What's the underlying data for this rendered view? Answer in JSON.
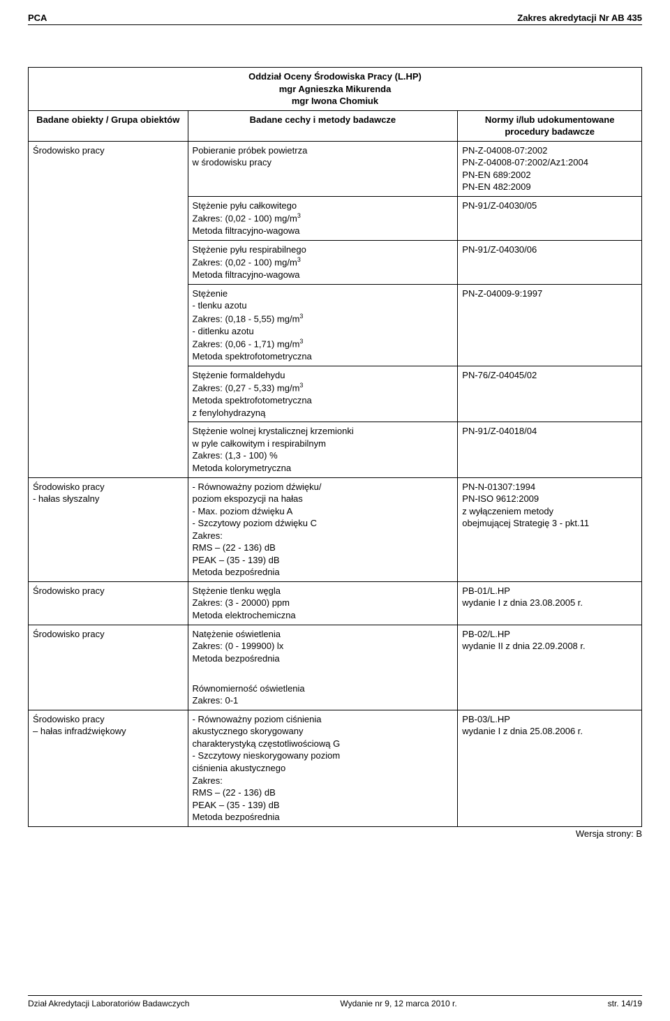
{
  "colors": {
    "text": "#000000",
    "background": "#ffffff",
    "border": "#000000"
  },
  "typography": {
    "body_font_size_pt": 10,
    "title_font_size_pt": 11,
    "sup_font_size_pt": 7
  },
  "header": {
    "left": "PCA",
    "right": "Zakres akredytacji Nr AB 435"
  },
  "title": {
    "line1": "Oddział Oceny Środowiska Pracy  (L.HP)",
    "line2": "mgr Agnieszka Mikurenda",
    "line3": "mgr Iwona Chomiuk"
  },
  "columns": {
    "c1": "Badane obiekty / Grupa obiektów",
    "c2": "Badane cechy i metody badawcze",
    "c3_l1": "Normy i/lub udokumentowane",
    "c3_l2": "procedury badawcze"
  },
  "rows": {
    "r1c1": "Środowisko pracy",
    "r1c2_1": "Pobieranie próbek powietrza",
    "r1c2_2": "w środowisku pracy",
    "r1c3_1": "PN-Z-04008-07:2002",
    "r1c3_2": "PN-Z-04008-07:2002/Az1:2004",
    "r1c3_3": "PN-EN 689:2002",
    "r1c3_4": "PN-EN 482:2009",
    "r2c2_1": "Stężenie pyłu całkowitego",
    "r2c2_2a": "Zakres: (0,02 - 100) mg/m",
    "r2c2_2b": "3",
    "r2c2_3": "Metoda filtracyjno-wagowa",
    "r2c3": "PN-91/Z-04030/05",
    "r3c2_1": "Stężenie pyłu respirabilnego",
    "r3c2_2a": "Zakres: (0,02 - 100) mg/m",
    "r3c2_2b": "3",
    "r3c2_3": "Metoda filtracyjno-wagowa",
    "r3c3": "PN-91/Z-04030/06",
    "r4c2_1": "Stężenie",
    "r4c2_2": "- tlenku azotu",
    "r4c2_3a": "Zakres: (0,18 - 5,55) mg/m",
    "r4c2_3b": "3",
    "r4c2_4": "- ditlenku azotu",
    "r4c2_5a": "Zakres: (0,06 - 1,71) mg/m",
    "r4c2_5b": "3",
    "r4c2_6": "Metoda spektrofotometryczna",
    "r4c3": "PN-Z-04009-9:1997",
    "r5c2_1": "Stężenie formaldehydu",
    "r5c2_2a": "Zakres: (0,27 - 5,33) mg/m",
    "r5c2_2b": "3",
    "r5c2_3": "Metoda spektrofotometryczna",
    "r5c2_4": "z fenylohydrazyną",
    "r5c3": "PN-76/Z-04045/02",
    "r6c2_1": "Stężenie wolnej krystalicznej krzemionki",
    "r6c2_2": "w pyle całkowitym i respirabilnym",
    "r6c2_3": "Zakres: (1,3 - 100) %",
    "r6c2_4": "Metoda kolorymetryczna",
    "r6c3": "PN-91/Z-04018/04",
    "r7c1_1": "Środowisko pracy",
    "r7c1_2": "- hałas słyszalny",
    "r7c2_1": "- Równoważny poziom dźwięku/",
    "r7c2_2": "  poziom ekspozycji na hałas",
    "r7c2_3": "- Max. poziom dźwięku A",
    "r7c2_4": "- Szczytowy poziom dźwięku C",
    "r7c2_5": "Zakres:",
    "r7c2_6": "RMS – (22 - 136) dB",
    "r7c2_7": "PEAK – (35 - 139) dB",
    "r7c2_8": "Metoda bezpośrednia",
    "r7c3_1": "PN-N-01307:1994",
    "r7c3_2": "PN-ISO 9612:2009",
    "r7c3_3": "z wyłączeniem metody",
    "r7c3_4": "obejmującej Strategię 3 - pkt.11",
    "r8c1": "Środowisko pracy",
    "r8c2_1": "Stężenie tlenku węgla",
    "r8c2_2": "Zakres: (3 - 20000) ppm",
    "r8c2_3": "Metoda elektrochemiczna",
    "r8c3_1": "PB-01/L.HP",
    "r8c3_2": "wydanie I z dnia 23.08.2005 r.",
    "r9c1": "Środowisko pracy",
    "r9c2_1": "Natężenie oświetlenia",
    "r9c2_2": "Zakres: (0 - 199900) lx",
    "r9c2_3": "Metoda bezpośrednia",
    "r9c2_4": "",
    "r9c2_5": "Równomierność oświetlenia",
    "r9c2_6": "Zakres: 0-1",
    "r9c3_1": "PB-02/L.HP",
    "r9c3_2": "wydanie II z dnia 22.09.2008 r.",
    "r10c1_1": "Środowisko pracy",
    "r10c1_2": "– hałas infradźwiękowy",
    "r10c2_1": "- Równoważny poziom ciśnienia",
    "r10c2_2": "  akustycznego skorygowany",
    "r10c2_3": "  charakterystyką częstotliwościową G",
    "r10c2_4": "- Szczytowy nieskorygowany poziom",
    "r10c2_5": "  ciśnienia akustycznego",
    "r10c2_6": "Zakres:",
    "r10c2_7": "RMS – (22 - 136) dB",
    "r10c2_8": "PEAK – (35 - 139) dB",
    "r10c2_9": "Metoda bezpośrednia",
    "r10c3_1": "PB-03/L.HP",
    "r10c3_2": "wydanie I z dnia 25.08.2006 r."
  },
  "version": "Wersja strony: B",
  "footer": {
    "left": "Dział Akredytacji Laboratoriów Badawczych",
    "center": "Wydanie nr 9, 12 marca 2010 r.",
    "right": "str. 14/19"
  }
}
